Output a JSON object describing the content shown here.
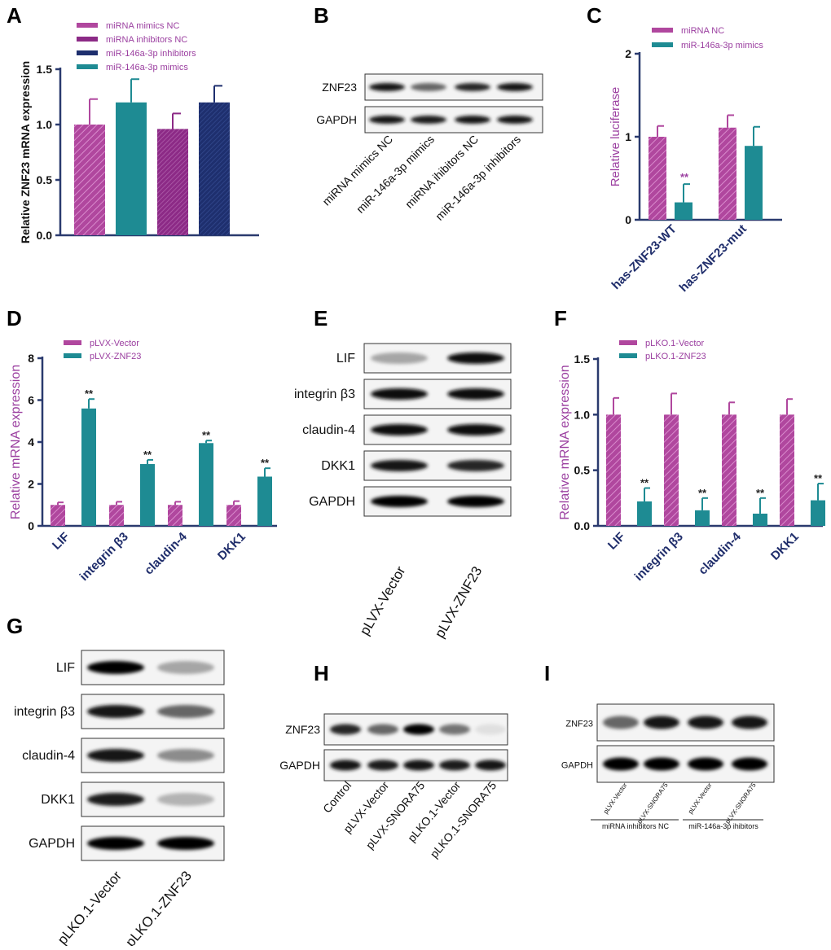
{
  "colors": {
    "magenta": "#b0479e",
    "purple": "#8c2a86",
    "navy": "#1e2f6e",
    "teal": "#1e8b93",
    "axis_label_purple": "#9b3fa0"
  },
  "panels": {
    "A": "A",
    "B": "B",
    "C": "C",
    "D": "D",
    "E": "E",
    "F": "F",
    "G": "G",
    "H": "H",
    "I": "I"
  },
  "chart_data": [
    {
      "panel": "A",
      "type": "bar",
      "ylabel": "Relative ZNF23 mRNA expression",
      "ylim": [
        0,
        1.5
      ],
      "yticks": [
        "0.0",
        "0.5",
        "1.0",
        "1.5"
      ],
      "categories": [
        "miRNA mimics NC",
        "miR-146a-3p mimics",
        "miRNA inhibitors NC",
        "miR-146a-3p inhibitors"
      ],
      "legend": [
        "miRNA mimics NC",
        "miRNA inhibitors NC",
        "miR-146a-3p inhibitors",
        "miR-146a-3p mimics"
      ],
      "values": [
        1.0,
        1.2,
        0.96,
        1.2
      ],
      "errors": [
        0.23,
        0.21,
        0.14,
        0.15
      ],
      "bar_colors": [
        "#b0479e",
        "#1e8b93",
        "#8c2a86",
        "#1e2f6e"
      ]
    },
    {
      "panel": "C",
      "type": "bar",
      "ylabel": "Relative luciferase",
      "ylim": [
        0,
        2
      ],
      "yticks": [
        "0",
        "1",
        "2"
      ],
      "categories": [
        "has-ZNF23-WT",
        "has-ZNF23-mut"
      ],
      "series": [
        {
          "name": "miRNA NC",
          "values": [
            1.0,
            1.11
          ],
          "errors": [
            0.13,
            0.15
          ]
        },
        {
          "name": "miR-146a-3p mimics",
          "values": [
            0.21,
            0.89
          ],
          "errors": [
            0.22,
            0.23
          ]
        }
      ],
      "annotations": [
        {
          "category": "has-ZNF23-WT",
          "series": "miR-146a-3p mimics",
          "text": "**"
        }
      ]
    },
    {
      "panel": "D",
      "type": "bar",
      "ylabel": "Relative mRNA expression",
      "ylim": [
        0,
        8
      ],
      "yticks": [
        "0",
        "2",
        "4",
        "6",
        "8"
      ],
      "categories": [
        "LIF",
        "integrin β3",
        "claudin-4",
        "DKK1"
      ],
      "series": [
        {
          "name": "pLVX-Vector",
          "values": [
            1.0,
            1.0,
            1.0,
            1.0
          ],
          "errors": [
            0.12,
            0.15,
            0.15,
            0.18
          ]
        },
        {
          "name": "pLVX-ZNF23",
          "values": [
            5.6,
            2.95,
            3.95,
            2.35
          ],
          "errors": [
            0.45,
            0.2,
            0.12,
            0.4
          ]
        }
      ],
      "sig": [
        "**",
        "**",
        "**",
        "**"
      ]
    },
    {
      "panel": "F",
      "type": "bar",
      "ylabel": "Relative mRNA expression",
      "ylim": [
        0,
        1.5
      ],
      "yticks": [
        "0.0",
        "0.5",
        "1.0",
        "1.5"
      ],
      "categories": [
        "LIF",
        "integrin β3",
        "claudin-4",
        "DKK1"
      ],
      "series": [
        {
          "name": "pLKO.1-Vector",
          "values": [
            1.0,
            1.0,
            1.0,
            1.0
          ],
          "errors": [
            0.15,
            0.19,
            0.11,
            0.14
          ]
        },
        {
          "name": "pLKO.1-ZNF23",
          "values": [
            0.22,
            0.14,
            0.11,
            0.23
          ],
          "errors": [
            0.12,
            0.11,
            0.14,
            0.15
          ]
        }
      ],
      "sig": [
        "**",
        "**",
        "**",
        "**"
      ]
    }
  ],
  "blots": {
    "B": {
      "rows": [
        "ZNF23",
        "GAPDH"
      ],
      "lanes": [
        "miRNA mimics NC",
        "miR-146a-3p mimics",
        "miRNA ihibitors NC",
        "miR-146a-3p inhibitors"
      ]
    },
    "E": {
      "rows": [
        "LIF",
        "integrin β3",
        "claudin-4",
        "DKK1",
        "GAPDH"
      ],
      "lanes": [
        "pLVX-Vector",
        "pLVX-ZNF23"
      ]
    },
    "G": {
      "rows": [
        "LIF",
        "integrin β3",
        "claudin-4",
        "DKK1",
        "GAPDH"
      ],
      "lanes": [
        "pLKO.1-Vector",
        "pLKO.1-ZNF23"
      ]
    },
    "H": {
      "rows": [
        "ZNF23",
        "GAPDH"
      ],
      "lanes": [
        "Control",
        "pLVX-Vector",
        "pLVX-SNORA75",
        "pLKO.1-Vector",
        "pLKO.1-SNORA75"
      ]
    },
    "I": {
      "rows": [
        "ZNF23",
        "GAPDH"
      ],
      "lanes": [
        "pLVX-Vector",
        "pLVX-SNORA75",
        "pLVX-Vector",
        "pLVX-SNORA75"
      ],
      "groups": [
        "miRNA inhibitors NC",
        "miR-146a-3p ihibitors"
      ]
    }
  }
}
